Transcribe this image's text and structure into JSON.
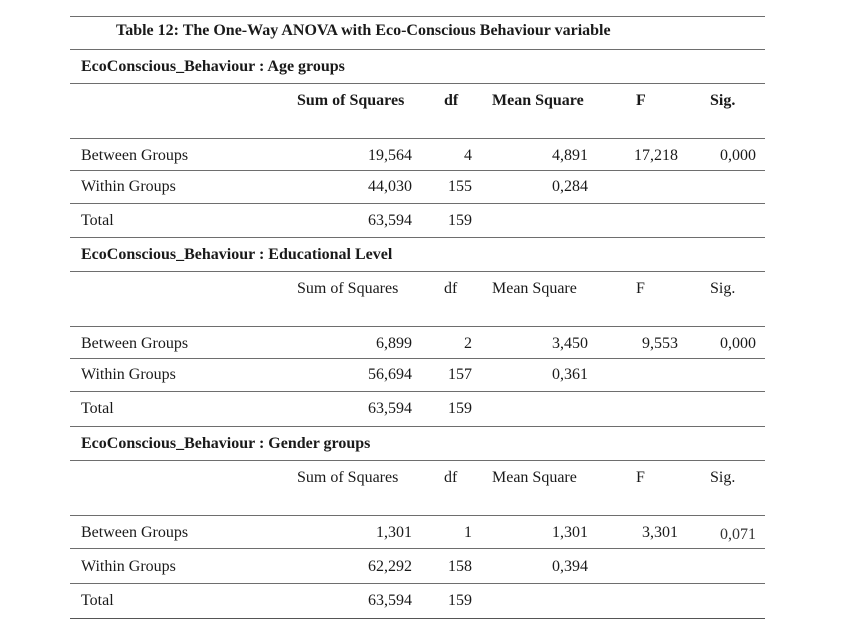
{
  "table": {
    "title": "Table 12: The One-Way ANOVA with Eco-Conscious Behaviour variable",
    "sections": [
      {
        "heading": "EcoConscious_Behaviour : Age groups",
        "headers": [
          "Sum of Squares",
          "df",
          "Mean Square",
          "F",
          "Sig."
        ],
        "rows": [
          [
            "Between Groups",
            "19,564",
            "4",
            "4,891",
            "17,218",
            "0,000"
          ],
          [
            "Within Groups",
            "44,030",
            "155",
            "0,284",
            "",
            ""
          ],
          [
            "Total",
            "63,594",
            "159",
            "",
            "",
            ""
          ]
        ]
      },
      {
        "heading": "EcoConscious_Behaviour : Educational Level",
        "headers": [
          "Sum of Squares",
          "df",
          "Mean Square",
          "F",
          "Sig."
        ],
        "rows": [
          [
            "Between Groups",
            "6,899",
            "2",
            "3,450",
            "9,553",
            "0,000"
          ],
          [
            "Within Groups",
            "56,694",
            "157",
            "0,361",
            "",
            ""
          ],
          [
            "Total",
            "63,594",
            "159",
            "",
            "",
            ""
          ]
        ]
      },
      {
        "heading": "EcoConscious_Behaviour : Gender groups",
        "headers": [
          "Sum of Squares",
          "df",
          "Mean Square",
          "F",
          "Sig."
        ],
        "rows": [
          [
            "Between Groups",
            "1,301",
            "1",
            "1,301",
            "3,301",
            "0,071"
          ],
          [
            "Within Groups",
            "62,292",
            "158",
            "0,394",
            "",
            ""
          ],
          [
            "Total",
            "63,594",
            "159",
            "",
            "",
            ""
          ]
        ]
      }
    ]
  }
}
